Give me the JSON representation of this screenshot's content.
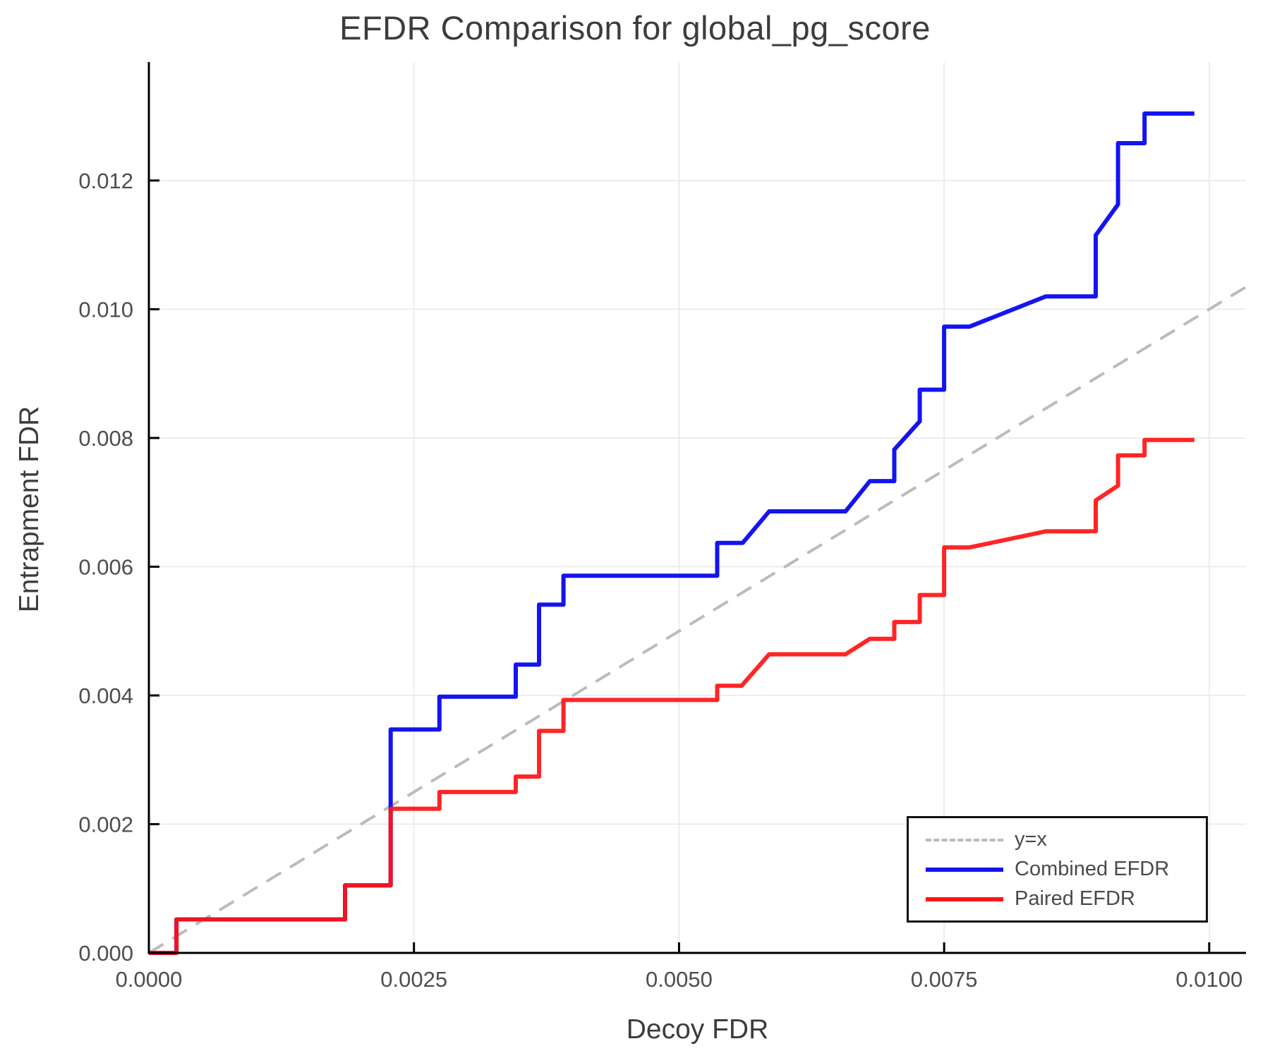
{
  "chart_data": {
    "type": "line",
    "title": "EFDR Comparison for global_pg_score",
    "xlabel": "Decoy FDR",
    "ylabel": "Entrapment FDR",
    "grid": true,
    "legend_position": "bottom-right",
    "xlim": [
      0,
      0.010347
    ],
    "ylim": [
      0,
      0.01384
    ],
    "xticks": {
      "values": [
        0,
        0.0025,
        0.005,
        0.0075,
        0.01
      ],
      "labels": [
        "0.0000",
        "0.0025",
        "0.0050",
        "0.0075",
        "0.0100"
      ]
    },
    "yticks": {
      "values": [
        0,
        0.002,
        0.004,
        0.006,
        0.008,
        0.01,
        0.012
      ],
      "labels": [
        "0.000",
        "0.002",
        "0.004",
        "0.006",
        "0.008",
        "0.010",
        "0.012"
      ]
    },
    "colors": {
      "reference": "#bbbbbb",
      "combined": "#1414f0",
      "paired": "#ff1414",
      "grid": "#e9e9e9",
      "axis": "#000000",
      "tick_text": "#4d4d4d",
      "title_text": "#3c3c3c"
    },
    "series": [
      {
        "name": "y=x",
        "style": "dashed",
        "color": "#bbbbbb",
        "width": 4,
        "points": [
          [
            0,
            0
          ],
          [
            0.010347,
            0.010347
          ]
        ]
      },
      {
        "name": "Combined EFDR",
        "style": "solid",
        "color": "#1414f0",
        "width": 6,
        "points": [
          [
            0,
            0
          ],
          [
            0.00026,
            0
          ],
          [
            0.00026,
            0.00052
          ],
          [
            0.00185,
            0.00052
          ],
          [
            0.00185,
            0.00105
          ],
          [
            0.00228,
            0.00105
          ],
          [
            0.00228,
            0.00347
          ],
          [
            0.00274,
            0.00347
          ],
          [
            0.00274,
            0.00398
          ],
          [
            0.00346,
            0.00398
          ],
          [
            0.00346,
            0.00448
          ],
          [
            0.00368,
            0.00448
          ],
          [
            0.00368,
            0.00541
          ],
          [
            0.00391,
            0.00541
          ],
          [
            0.00391,
            0.00586
          ],
          [
            0.00536,
            0.00586
          ],
          [
            0.00536,
            0.00637
          ],
          [
            0.0056,
            0.00637
          ],
          [
            0.00585,
            0.00686
          ],
          [
            0.00657,
            0.00686
          ],
          [
            0.0068,
            0.00733
          ],
          [
            0.00703,
            0.00733
          ],
          [
            0.00703,
            0.00782
          ],
          [
            0.00727,
            0.00826
          ],
          [
            0.00727,
            0.00875
          ],
          [
            0.0075,
            0.00875
          ],
          [
            0.0075,
            0.00973
          ],
          [
            0.00774,
            0.00973
          ],
          [
            0.00846,
            0.0102
          ],
          [
            0.00893,
            0.0102
          ],
          [
            0.00893,
            0.01115
          ],
          [
            0.00914,
            0.01163
          ],
          [
            0.00914,
            0.01258
          ],
          [
            0.00939,
            0.01258
          ],
          [
            0.00939,
            0.01304
          ],
          [
            0.00986,
            0.01304
          ]
        ]
      },
      {
        "name": "Paired EFDR",
        "style": "solid",
        "color": "#ff1414",
        "width": 6,
        "opacity": 0.93,
        "points": [
          [
            0,
            0
          ],
          [
            0.00026,
            0
          ],
          [
            0.00026,
            0.00052
          ],
          [
            0.00185,
            0.00052
          ],
          [
            0.00185,
            0.00105
          ],
          [
            0.00228,
            0.00105
          ],
          [
            0.00228,
            0.00224
          ],
          [
            0.00274,
            0.00224
          ],
          [
            0.00274,
            0.0025
          ],
          [
            0.00346,
            0.0025
          ],
          [
            0.00346,
            0.00274
          ],
          [
            0.00368,
            0.00274
          ],
          [
            0.00368,
            0.00345
          ],
          [
            0.00391,
            0.00345
          ],
          [
            0.00391,
            0.00393
          ],
          [
            0.00536,
            0.00393
          ],
          [
            0.00536,
            0.00415
          ],
          [
            0.00559,
            0.00415
          ],
          [
            0.00585,
            0.00464
          ],
          [
            0.00657,
            0.00464
          ],
          [
            0.0068,
            0.00488
          ],
          [
            0.00703,
            0.00488
          ],
          [
            0.00703,
            0.00514
          ],
          [
            0.00727,
            0.00514
          ],
          [
            0.00727,
            0.00556
          ],
          [
            0.0075,
            0.00556
          ],
          [
            0.0075,
            0.0063
          ],
          [
            0.00774,
            0.0063
          ],
          [
            0.00846,
            0.00655
          ],
          [
            0.00893,
            0.00655
          ],
          [
            0.00893,
            0.00703
          ],
          [
            0.00914,
            0.00726
          ],
          [
            0.00914,
            0.00773
          ],
          [
            0.00939,
            0.00773
          ],
          [
            0.00939,
            0.00797
          ],
          [
            0.00986,
            0.00797
          ]
        ]
      }
    ]
  }
}
